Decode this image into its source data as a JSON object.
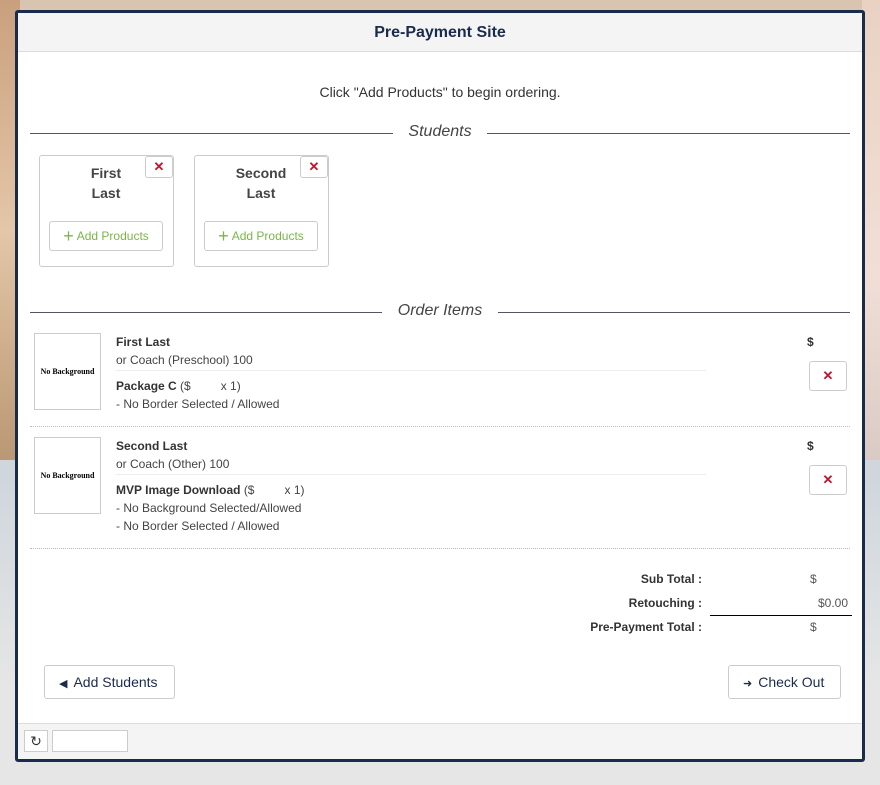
{
  "header": {
    "title": "Pre-Payment Site"
  },
  "intro": "Click \"Add Products\" to begin ordering.",
  "students_section": "Students",
  "students": [
    {
      "first": "First",
      "last": "Last",
      "add_label": "Add Products",
      "remove": "✕"
    },
    {
      "first": "Second",
      "last": "Last",
      "add_label": "Add Products",
      "remove": "✕"
    }
  ],
  "order_section": "Order Items",
  "thumb_text": "No Background",
  "order_items": [
    {
      "name": "First Last",
      "subtitle": "or Coach (Preschool) 100",
      "product": "Package C",
      "price_open": "($",
      "qty": "x 1)",
      "notes": [
        "- No Border Selected / Allowed"
      ],
      "price": "$",
      "remove": "✕"
    },
    {
      "name": "Second Last",
      "subtitle": "or Coach (Other) 100",
      "product": "MVP Image Download",
      "price_open": "($",
      "qty": "x 1)",
      "notes": [
        "- No Background Selected/Allowed",
        "- No Border Selected / Allowed"
      ],
      "price": "$",
      "remove": "✕"
    }
  ],
  "totals": {
    "subtotal_label": "Sub Total :",
    "subtotal": "$",
    "retouching_label": "Retouching :",
    "retouching": "$0.00",
    "total_label": "Pre-Payment Total :",
    "total": "$"
  },
  "buttons": {
    "add_students": "Add Students",
    "check_out": "Check Out"
  },
  "colors": {
    "accent": "#1b2b4b",
    "add": "#7ab648",
    "remove": "#c0152f"
  }
}
